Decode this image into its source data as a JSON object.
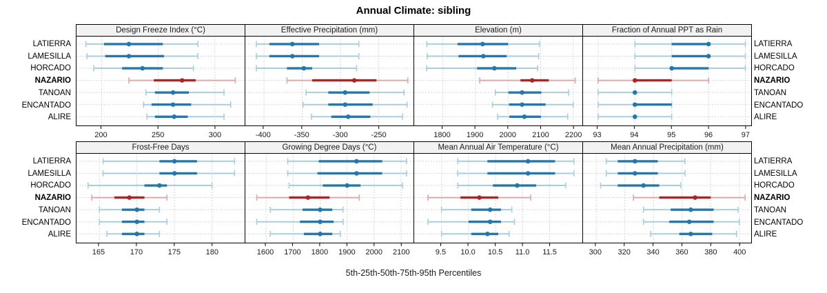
{
  "title": "Annual Climate: sibling",
  "xlabel": "5th-25th-50th-75th-95th Percentiles",
  "sites": [
    "LATIERRA",
    "LAMESILLA",
    "HORCADO",
    "NAZARIO",
    "TANOAN",
    "ENCANTADO",
    "ALIRE"
  ],
  "highlight_site": "NAZARIO",
  "colors": {
    "blue_dark": "#1F78B4",
    "blue_light": "#A6CEE3",
    "red_dark": "#B22222",
    "red_light": "#E2A6A6",
    "strip_bg": "#F2F2F2",
    "grid": "#C8C8C8",
    "border": "#000000",
    "text": "#1A1A1A"
  },
  "chart_data": {
    "type": "box",
    "variant": "horizontal percentile interval plot (5th-25th-50th-75th-95th); light line = 5th-95th, thick line = 25th-75th, dot = median",
    "layout": {
      "rows": 2,
      "cols": 4,
      "legend": "none",
      "grid": "dotted"
    },
    "categories": [
      "LATIERRA",
      "LAMESILLA",
      "HORCADO",
      "NAZARIO",
      "TANOAN",
      "ENCANTADO",
      "ALIRE"
    ],
    "percentile_labels": [
      "5th",
      "25th",
      "50th",
      "75th",
      "95th"
    ],
    "panels": [
      {
        "title": "Design Freeze Index (°C)",
        "xlim": [
          178,
          326
        ],
        "ticks": [
          200,
          250,
          300
        ],
        "tick_labels": [
          "200",
          "250",
          "300"
        ],
        "values": [
          [
            186,
            202,
            224,
            254,
            285
          ],
          [
            187,
            203,
            224,
            255,
            285
          ],
          [
            193,
            218,
            236,
            254,
            281
          ],
          [
            224,
            246,
            271,
            283,
            318
          ],
          [
            239,
            247,
            263,
            277,
            308
          ],
          [
            237,
            244,
            263,
            279,
            314
          ],
          [
            240,
            247,
            264,
            276,
            308
          ]
        ]
      },
      {
        "title": "Effective Precipitation (mm)",
        "xlim": [
          -424,
          -205
        ],
        "ticks": [
          -400,
          -350,
          -300,
          -250
        ],
        "tick_labels": [
          "-400",
          "-350",
          "-300",
          "-250"
        ],
        "values": [
          [
            -410,
            -393,
            -363,
            -328,
            -276
          ],
          [
            -410,
            -393,
            -363,
            -328,
            -276
          ],
          [
            -410,
            -370,
            -348,
            -337,
            -279
          ],
          [
            -370,
            -337,
            -282,
            -253,
            -212
          ],
          [
            -345,
            -316,
            -294,
            -262,
            -217
          ],
          [
            -349,
            -316,
            -294,
            -258,
            -213
          ],
          [
            -338,
            -312,
            -290,
            -261,
            -219
          ]
        ]
      },
      {
        "title": "Elevation (m)",
        "xlim": [
          1713,
          2227
        ],
        "ticks": [
          1800,
          1900,
          2000,
          2100,
          2200
        ],
        "tick_labels": [
          "1800",
          "1900",
          "2000",
          "2100",
          "2200"
        ],
        "values": [
          [
            1751,
            1845,
            1922,
            2000,
            2096
          ],
          [
            1752,
            1848,
            1924,
            1996,
            2094
          ],
          [
            1750,
            1905,
            1958,
            2025,
            2091
          ],
          [
            1913,
            2038,
            2074,
            2125,
            2206
          ],
          [
            1961,
            2001,
            2043,
            2102,
            2186
          ],
          [
            1952,
            2003,
            2043,
            2115,
            2200
          ],
          [
            1968,
            2004,
            2050,
            2101,
            2183
          ]
        ]
      },
      {
        "title": "Fraction of Annual PPT as Rain",
        "xlim": [
          92.6,
          97.15
        ],
        "ticks": [
          93,
          94,
          95,
          96,
          97
        ],
        "tick_labels": [
          "93",
          "94",
          "95",
          "96",
          "97"
        ],
        "values": [
          [
            94,
            95,
            96,
            96,
            97
          ],
          [
            94,
            95,
            96,
            96,
            97
          ],
          [
            94,
            95,
            95,
            96,
            97
          ],
          [
            93,
            94,
            94,
            95,
            96
          ],
          [
            93,
            94,
            94,
            94,
            95
          ],
          [
            93,
            94,
            94,
            95,
            95
          ],
          [
            93,
            94,
            94,
            94,
            95
          ]
        ]
      },
      {
        "title": "Frost-Free Days",
        "xlim": [
          162,
          184.3
        ],
        "ticks": [
          165,
          170,
          175,
          180
        ],
        "tick_labels": [
          "165",
          "170",
          "175",
          "180"
        ],
        "values": [
          [
            165.5,
            173,
            175,
            178,
            183
          ],
          [
            165.5,
            173,
            175,
            178,
            183
          ],
          [
            163.5,
            171,
            173,
            174,
            180
          ],
          [
            164,
            167,
            169,
            171,
            174
          ],
          [
            165,
            168,
            170,
            171,
            173
          ],
          [
            165,
            168,
            170,
            171,
            174
          ],
          [
            166,
            168,
            170,
            171,
            173
          ]
        ]
      },
      {
        "title": "Growing Degree Days (°C)",
        "xlim": [
          1524,
          2145
        ],
        "ticks": [
          1600,
          1700,
          1800,
          1900,
          2000,
          2100
        ],
        "tick_labels": [
          "1600",
          "1700",
          "1800",
          "1900",
          "2000",
          "2100"
        ],
        "values": [
          [
            1680,
            1795,
            1935,
            2030,
            2120
          ],
          [
            1680,
            1790,
            1935,
            2030,
            2120
          ],
          [
            1685,
            1810,
            1900,
            1950,
            2105
          ],
          [
            1565,
            1685,
            1755,
            1835,
            1945
          ],
          [
            1615,
            1735,
            1800,
            1845,
            1885
          ],
          [
            1565,
            1725,
            1800,
            1850,
            1885
          ],
          [
            1615,
            1740,
            1800,
            1845,
            1875
          ]
        ]
      },
      {
        "title": "Mean Annual Air Temperature (°C)",
        "xlim": [
          9.0,
          12.1
        ],
        "ticks": [
          9.5,
          10.0,
          10.5,
          11.0,
          11.5
        ],
        "tick_labels": [
          "9.5",
          "10.0",
          "10.5",
          "11.0",
          "11.5"
        ],
        "values": [
          [
            9.8,
            10.35,
            11.1,
            11.6,
            11.95
          ],
          [
            9.8,
            10.35,
            11.1,
            11.6,
            11.95
          ],
          [
            9.8,
            10.45,
            10.9,
            11.25,
            11.8
          ],
          [
            9.25,
            9.85,
            10.2,
            10.55,
            11.15
          ],
          [
            9.5,
            10.05,
            10.4,
            10.6,
            10.8
          ],
          [
            9.25,
            10.0,
            10.4,
            10.6,
            10.85
          ],
          [
            9.5,
            10.05,
            10.35,
            10.55,
            10.75
          ]
        ]
      },
      {
        "title": "Mean Annual Precipitation (mm)",
        "xlim": [
          291,
          408
        ],
        "ticks": [
          300,
          320,
          340,
          360,
          380,
          400
        ],
        "tick_labels": [
          "300",
          "320",
          "340",
          "360",
          "380",
          "400"
        ],
        "values": [
          [
            307,
            315,
            327,
            343,
            362
          ],
          [
            307,
            315,
            327,
            343,
            362
          ],
          [
            303,
            315,
            333,
            344,
            359
          ],
          [
            326,
            344,
            369,
            380,
            404
          ],
          [
            333,
            352,
            366,
            382,
            399
          ],
          [
            333,
            351,
            365,
            382,
            400
          ],
          [
            338,
            358,
            366,
            381,
            398
          ]
        ]
      }
    ]
  }
}
